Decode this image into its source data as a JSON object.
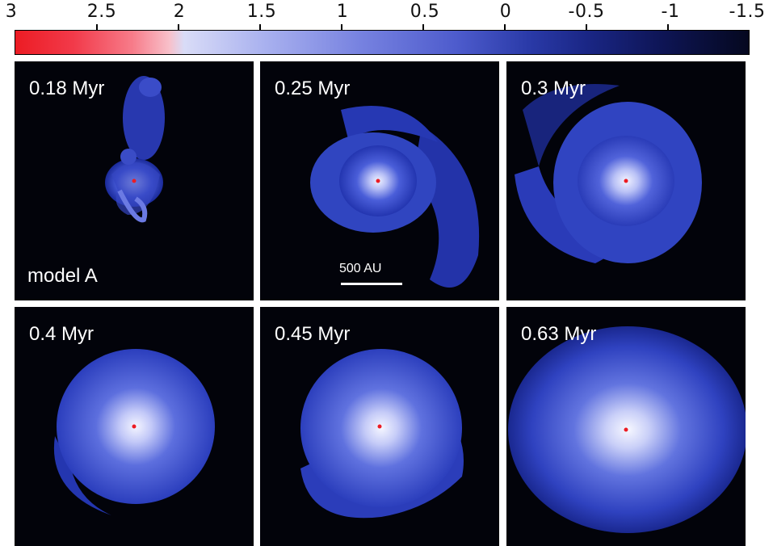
{
  "colorbar": {
    "ticks": [
      "3",
      "2.5",
      "2",
      "1.5",
      "1",
      "0.5",
      "0",
      "-0.5",
      "-1",
      "-1.5"
    ],
    "range": [
      3,
      -1.5
    ],
    "colors": {
      "high": "#ec1c24",
      "mid": "#d9dcf7",
      "low": "#05081f"
    }
  },
  "panels": [
    {
      "time": "0.18 Myr",
      "model": "model A"
    },
    {
      "time": "0.25 Myr",
      "scalebar": "500 AU"
    },
    {
      "time": "0.3 Myr"
    },
    {
      "time": "0.4 Myr"
    },
    {
      "time": "0.45 Myr"
    },
    {
      "time": "0.63 Myr"
    }
  ]
}
